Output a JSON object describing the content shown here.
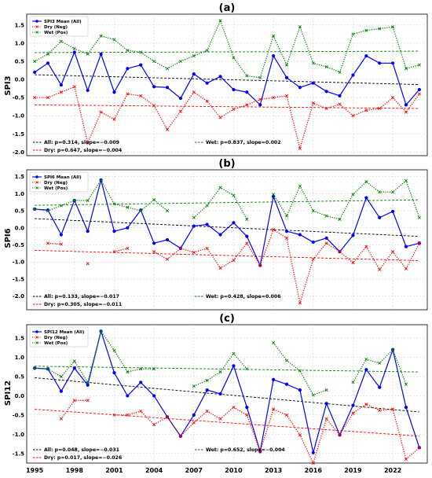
{
  "chart_data": [
    {
      "type": "line",
      "title": "(a)",
      "ylabel": "SPI3",
      "ylim": [
        -2.1,
        1.8
      ],
      "yticks": [
        "-2.0",
        "-1.5",
        "-1.0",
        "-0.5",
        "0.0",
        "0.5",
        "1.0",
        "1.5"
      ],
      "x": [
        1995,
        1996,
        1997,
        1998,
        1999,
        2000,
        2001,
        2002,
        2003,
        2004,
        2005,
        2006,
        2007,
        2008,
        2009,
        2010,
        2011,
        2012,
        2013,
        2014,
        2015,
        2016,
        2017,
        2018,
        2019,
        2020,
        2021,
        2022,
        2023,
        2024
      ],
      "series": [
        {
          "name": "SPI3 Mean (All)",
          "color": "#0000ff",
          "values": [
            0.2,
            0.45,
            -0.15,
            0.75,
            -0.3,
            0.7,
            -0.35,
            0.3,
            0.4,
            -0.2,
            -0.22,
            -0.52,
            0.15,
            -0.1,
            0.08,
            -0.28,
            -0.35,
            -0.7,
            0.65,
            0.05,
            -0.22,
            -0.1,
            -0.33,
            -0.45,
            0.12,
            0.65,
            0.45,
            0.45,
            -0.7,
            -0.28
          ]
        },
        {
          "name": "Dry (Neg)",
          "color": "#ff0000",
          "values": [
            -0.5,
            -0.5,
            -0.35,
            -0.2,
            -1.75,
            -0.9,
            -1.1,
            -0.4,
            -0.45,
            -0.72,
            -1.38,
            -0.88,
            -0.35,
            -0.6,
            -1.05,
            -0.82,
            -0.7,
            -0.55,
            -0.5,
            -0.45,
            -1.9,
            -0.65,
            -0.8,
            -0.68,
            -1.0,
            -0.85,
            -0.8,
            -0.5,
            -0.9,
            -0.4
          ]
        },
        {
          "name": "Wet (Pos)",
          "color": "#008000",
          "values": [
            0.5,
            0.7,
            1.05,
            0.85,
            0.7,
            1.2,
            1.1,
            0.8,
            0.75,
            0.5,
            0.3,
            0.5,
            0.65,
            0.8,
            1.62,
            0.6,
            0.1,
            0.05,
            1.2,
            0.4,
            1.45,
            0.45,
            0.35,
            0.2,
            1.25,
            1.35,
            1.4,
            1.45,
            0.3,
            0.4
          ]
        }
      ],
      "trends": {
        "all": [
          0.13,
          -0.14
        ],
        "dry": [
          -0.7,
          -0.8
        ],
        "wet": [
          0.74,
          0.78
        ]
      },
      "stats": [
        {
          "text": "All: p=0.314, slope=−0.009",
          "color": "#000000"
        },
        {
          "text": "Dry: p=0.647, slope=−0.004",
          "color": "#ff0000"
        },
        {
          "text": "Wet: p=0.837, slope=0.002",
          "color": "#008000"
        }
      ]
    },
    {
      "type": "line",
      "title": "(b)",
      "ylabel": "SPI6",
      "ylim": [
        -2.4,
        1.7
      ],
      "yticks": [
        "-2.0",
        "-1.5",
        "-1.0",
        "-0.5",
        "0.0",
        "0.5",
        "1.0",
        "1.5"
      ],
      "x": [
        1995,
        1996,
        1997,
        1998,
        1999,
        2000,
        2001,
        2002,
        2003,
        2004,
        2005,
        2006,
        2007,
        2008,
        2009,
        2010,
        2011,
        2012,
        2013,
        2014,
        2015,
        2016,
        2017,
        2018,
        2019,
        2020,
        2021,
        2022,
        2023,
        2024
      ],
      "series": [
        {
          "name": "SPI6 Mean (All)",
          "color": "#0000ff",
          "values": [
            0.55,
            0.52,
            -0.2,
            0.8,
            -0.1,
            1.4,
            -0.1,
            0.0,
            0.52,
            -0.45,
            -0.35,
            -0.6,
            0.05,
            0.1,
            -0.2,
            0.15,
            -0.25,
            -1.1,
            0.92,
            -0.1,
            -0.2,
            -0.42,
            -0.3,
            -0.7,
            -0.22,
            0.88,
            0.3,
            0.48,
            -0.55,
            -0.45
          ]
        },
        {
          "name": "Dry (Neg)",
          "color": "#ff0000",
          "values": [
            null,
            -0.45,
            -0.48,
            null,
            -1.05,
            null,
            -0.7,
            -0.6,
            null,
            -0.7,
            -0.92,
            -0.6,
            -0.72,
            -0.6,
            -1.18,
            -0.95,
            -0.45,
            -1.1,
            -0.05,
            -0.3,
            -2.2,
            -0.92,
            -0.45,
            -0.7,
            -1.02,
            -0.55,
            -1.22,
            -0.7,
            -1.2,
            -0.45
          ]
        },
        {
          "name": "Wet (Pos)",
          "color": "#008000",
          "values": [
            0.55,
            0.5,
            0.65,
            0.8,
            0.8,
            1.4,
            0.7,
            0.6,
            0.5,
            0.82,
            0.5,
            null,
            0.3,
            0.65,
            1.18,
            0.95,
            0.25,
            null,
            0.98,
            0.35,
            1.22,
            0.5,
            0.35,
            0.25,
            0.98,
            1.35,
            1.05,
            1.05,
            1.38,
            0.3
          ]
        }
      ],
      "trends": {
        "all": [
          0.27,
          -0.25
        ],
        "dry": [
          -0.66,
          -0.96
        ],
        "wet": [
          0.66,
          0.82
        ]
      },
      "stats": [
        {
          "text": "All: p=0.133, slope=−0.017",
          "color": "#000000"
        },
        {
          "text": "Dry: p=0.305, slope=−0.011",
          "color": "#ff0000"
        },
        {
          "text": "Wet: p=0.428, slope=0.006",
          "color": "#008000"
        }
      ]
    },
    {
      "type": "line",
      "title": "(c)",
      "ylabel": "SPI12",
      "ylim": [
        -1.75,
        1.85
      ],
      "yticks": [
        "-1.5",
        "-1.0",
        "-0.5",
        "0.0",
        "0.5",
        "1.0",
        "1.5"
      ],
      "x": [
        1995,
        1996,
        1997,
        1998,
        1999,
        2000,
        2001,
        2002,
        2003,
        2004,
        2005,
        2006,
        2007,
        2008,
        2009,
        2010,
        2011,
        2012,
        2013,
        2014,
        2015,
        2016,
        2017,
        2018,
        2019,
        2020,
        2021,
        2022,
        2023,
        2024
      ],
      "xticks": [
        "1995",
        "1998",
        "2001",
        "2004",
        "2007",
        "2010",
        "2013",
        "2016",
        "2019",
        "2022"
      ],
      "series": [
        {
          "name": "SPI12 Mean (All)",
          "color": "#0000ff",
          "values": [
            0.72,
            0.7,
            0.12,
            0.72,
            0.28,
            1.68,
            0.6,
            0.0,
            0.35,
            0.0,
            -0.55,
            -1.05,
            -0.5,
            0.15,
            0.05,
            0.78,
            -0.3,
            -1.45,
            0.42,
            0.3,
            0.15,
            -1.48,
            -0.2,
            -1.02,
            -0.25,
            0.68,
            0.22,
            1.2,
            -0.3,
            -1.35
          ]
        },
        {
          "name": "Dry (Neg)",
          "color": "#ff0000",
          "values": [
            null,
            null,
            -0.6,
            -0.12,
            -0.12,
            null,
            -0.5,
            -0.5,
            -0.4,
            -0.75,
            -0.55,
            -1.05,
            -0.7,
            -0.4,
            -0.6,
            -0.3,
            -0.5,
            -1.45,
            -0.35,
            -0.5,
            -1.02,
            -1.75,
            -0.6,
            -1.02,
            -0.45,
            -0.22,
            -0.38,
            -0.35,
            -1.65,
            -1.35
          ]
        },
        {
          "name": "Wet (Pos)",
          "color": "#008000",
          "values": [
            0.72,
            0.7,
            0.5,
            0.9,
            0.35,
            1.68,
            1.18,
            0.62,
            0.7,
            0.7,
            null,
            null,
            0.25,
            0.4,
            0.62,
            1.1,
            0.7,
            null,
            1.38,
            0.92,
            0.65,
            0.02,
            0.15,
            null,
            0.35,
            0.95,
            0.85,
            1.2,
            0.3,
            null
          ]
        }
      ],
      "trends": {
        "all": [
          0.47,
          -0.42
        ],
        "dry": [
          -0.35,
          -1.05
        ],
        "wet": [
          0.77,
          0.62
        ]
      },
      "stats": [
        {
          "text": "All: p=0.048, slope=−0.031",
          "color": "#000000"
        },
        {
          "text": "Dry: p=0.017, slope=−0.026",
          "color": "#ff0000"
        },
        {
          "text": "Wet: p=0.652, slope=−0.004",
          "color": "#008000"
        }
      ]
    }
  ]
}
